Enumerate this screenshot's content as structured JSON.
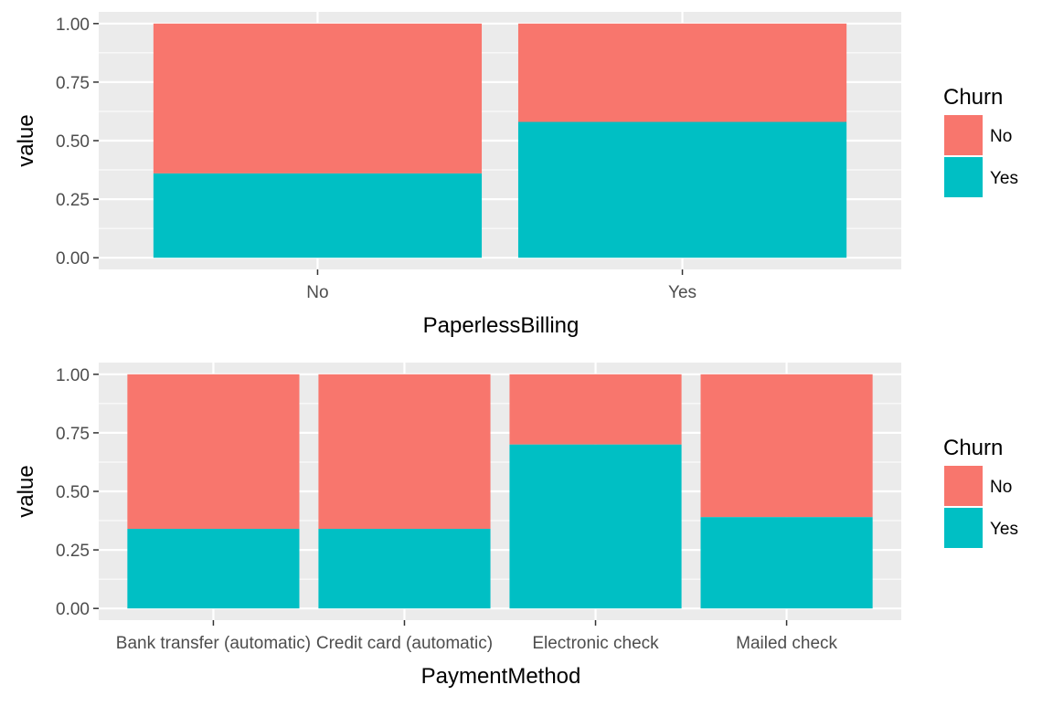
{
  "colors": {
    "No": "#F8766D",
    "Yes": "#00BFC4",
    "panel": "#EBEBEB",
    "grid": "#FFFFFF",
    "tick": "#333333"
  },
  "chart_data": [
    {
      "type": "bar",
      "stacked": true,
      "xlabel": "PaperlessBilling",
      "ylabel": "value",
      "ylim": [
        0,
        1
      ],
      "y_ticks": [
        "0.00",
        "0.25",
        "0.50",
        "0.75",
        "1.00"
      ],
      "categories": [
        "No",
        "Yes"
      ],
      "series": [
        {
          "name": "No",
          "values": [
            0.64,
            0.42
          ]
        },
        {
          "name": "Yes",
          "values": [
            0.36,
            0.58
          ]
        }
      ],
      "legend": {
        "title": "Churn",
        "position": "right",
        "entries": [
          "No",
          "Yes"
        ]
      },
      "grid": true
    },
    {
      "type": "bar",
      "stacked": true,
      "xlabel": "PaymentMethod",
      "ylabel": "value",
      "ylim": [
        0,
        1
      ],
      "y_ticks": [
        "0.00",
        "0.25",
        "0.50",
        "0.75",
        "1.00"
      ],
      "categories": [
        "Bank transfer (automatic)",
        "Credit card (automatic)",
        "Electronic check",
        "Mailed check"
      ],
      "series": [
        {
          "name": "No",
          "values": [
            0.66,
            0.66,
            0.3,
            0.61
          ]
        },
        {
          "name": "Yes",
          "values": [
            0.34,
            0.34,
            0.7,
            0.39
          ]
        }
      ],
      "legend": {
        "title": "Churn",
        "position": "right",
        "entries": [
          "No",
          "Yes"
        ]
      },
      "grid": true
    }
  ]
}
